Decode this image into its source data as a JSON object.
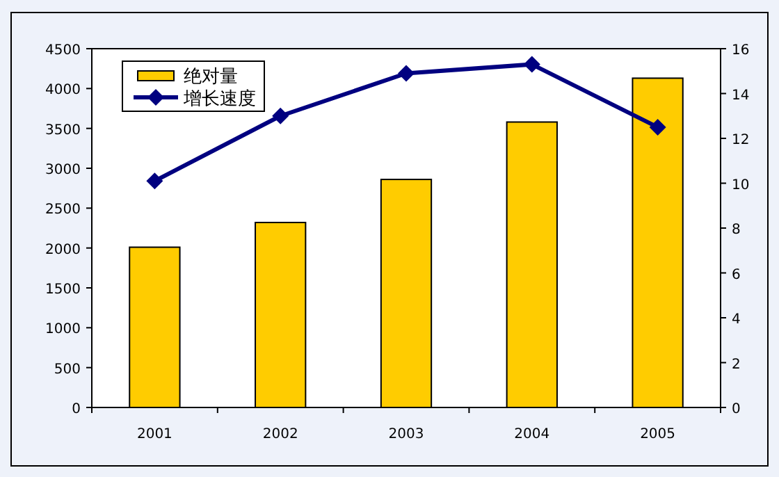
{
  "chart_data": {
    "type": "bar",
    "categories": [
      "2001",
      "2002",
      "2003",
      "2004",
      "2005"
    ],
    "series": [
      {
        "name": "绝对量",
        "color": "#ffcc00",
        "values": [
          2010,
          2320,
          2860,
          3580,
          4130
        ]
      },
      {
        "name": "增长速度",
        "type": "line",
        "axis": "y2",
        "color": "#000080",
        "marker": "diamond",
        "values": [
          10.1,
          13.0,
          14.9,
          15.3,
          12.5
        ]
      }
    ],
    "ylim": [
      0,
      4500
    ],
    "yticks": [
      0,
      500,
      1000,
      1500,
      2000,
      2500,
      3000,
      3500,
      4000,
      4500
    ],
    "y2lim": [
      0,
      16
    ],
    "y2ticks": [
      0,
      2,
      4,
      6,
      8,
      10,
      12,
      14,
      16
    ],
    "grid": false,
    "legend": "top left"
  }
}
